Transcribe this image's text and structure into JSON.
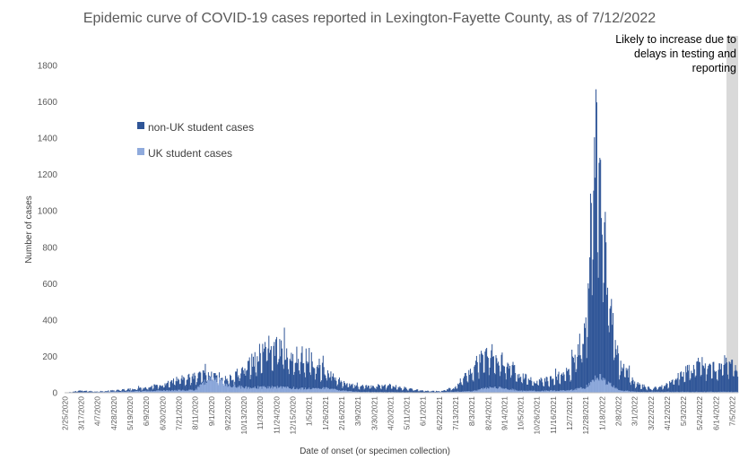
{
  "chart_data": {
    "type": "bar",
    "title": "Epidemic curve of COVID-19 cases reported in Lexington-Fayette County, as of 7/12/2022",
    "ylabel": "Number of cases",
    "xlabel": "Date of onset (or specimen collection)",
    "ylim": [
      0,
      1800
    ],
    "yticks": [
      0,
      200,
      400,
      600,
      800,
      1000,
      1200,
      1400,
      1600,
      1800
    ],
    "grid": false,
    "legend_position": "top-left",
    "series": [
      {
        "name": "non-UK student cases",
        "color": "#2F5597"
      },
      {
        "name": "UK student cases",
        "color": "#8FAADC"
      }
    ],
    "x_range": [
      "2/25/2020",
      "7/12/2022"
    ],
    "x_tick_labels": [
      "2/25/2020",
      "3/17/2020",
      "4/7/2020",
      "4/28/2020",
      "5/19/2020",
      "6/9/2020",
      "6/30/2020",
      "7/21/2020",
      "8/11/2020",
      "9/1/2020",
      "9/22/2020",
      "10/13/2020",
      "11/3/2020",
      "11/24/2020",
      "12/15/2020",
      "1/5/2021",
      "1/26/2021",
      "2/16/2021",
      "3/9/2021",
      "3/30/2021",
      "4/20/2021",
      "5/11/2021",
      "6/1/2021",
      "6/22/2021",
      "7/13/2021",
      "8/3/2021",
      "8/24/2021",
      "9/14/2021",
      "10/5/2021",
      "10/26/2021",
      "11/16/2021",
      "12/7/2021",
      "12/28/2021",
      "1/18/2022",
      "2/8/2022",
      "3/1/2022",
      "3/22/2022",
      "4/12/2022",
      "5/3/2022",
      "5/24/2022",
      "6/14/2022",
      "7/5/2022"
    ],
    "daily_total_keypoints": [
      [
        "2/25/2020",
        0
      ],
      [
        "3/17/2020",
        12
      ],
      [
        "4/7/2020",
        6
      ],
      [
        "4/28/2020",
        14
      ],
      [
        "5/19/2020",
        20
      ],
      [
        "6/9/2020",
        28
      ],
      [
        "6/30/2020",
        48
      ],
      [
        "7/21/2020",
        75
      ],
      [
        "8/11/2020",
        92
      ],
      [
        "9/1/2020",
        110
      ],
      [
        "9/22/2020",
        75
      ],
      [
        "10/13/2020",
        130
      ],
      [
        "11/3/2020",
        230
      ],
      [
        "11/17/2020",
        300
      ],
      [
        "11/24/2020",
        250
      ],
      [
        "12/15/2020",
        210
      ],
      [
        "1/5/2021",
        200
      ],
      [
        "1/26/2021",
        120
      ],
      [
        "2/16/2021",
        60
      ],
      [
        "3/9/2021",
        35
      ],
      [
        "3/30/2021",
        38
      ],
      [
        "4/20/2021",
        40
      ],
      [
        "5/11/2021",
        25
      ],
      [
        "6/1/2021",
        12
      ],
      [
        "6/22/2021",
        8
      ],
      [
        "7/13/2021",
        30
      ],
      [
        "8/3/2021",
        140
      ],
      [
        "8/24/2021",
        230
      ],
      [
        "9/14/2021",
        175
      ],
      [
        "10/5/2021",
        95
      ],
      [
        "10/26/2021",
        65
      ],
      [
        "11/16/2021",
        80
      ],
      [
        "12/7/2021",
        120
      ],
      [
        "12/28/2021",
        350
      ],
      [
        "1/8/2022",
        1450
      ],
      [
        "1/11/2022",
        1530
      ],
      [
        "1/18/2022",
        1100
      ],
      [
        "1/25/2022",
        600
      ],
      [
        "2/8/2022",
        180
      ],
      [
        "3/1/2022",
        55
      ],
      [
        "3/22/2022",
        25
      ],
      [
        "4/12/2022",
        45
      ],
      [
        "5/3/2022",
        110
      ],
      [
        "5/24/2022",
        160
      ],
      [
        "6/14/2022",
        150
      ],
      [
        "7/5/2022",
        185
      ],
      [
        "7/12/2022",
        110
      ]
    ],
    "daily_uk_keypoints": [
      [
        "2/25/2020",
        0
      ],
      [
        "8/11/2020",
        15
      ],
      [
        "8/24/2020",
        60
      ],
      [
        "9/1/2020",
        85
      ],
      [
        "9/22/2020",
        45
      ],
      [
        "10/13/2020",
        28
      ],
      [
        "11/24/2020",
        30
      ],
      [
        "1/5/2021",
        22
      ],
      [
        "1/26/2021",
        28
      ],
      [
        "2/16/2021",
        12
      ],
      [
        "3/9/2021",
        5
      ],
      [
        "6/1/2021",
        2
      ],
      [
        "8/3/2021",
        8
      ],
      [
        "8/24/2021",
        28
      ],
      [
        "9/14/2021",
        25
      ],
      [
        "10/5/2021",
        10
      ],
      [
        "12/7/2021",
        12
      ],
      [
        "12/28/2021",
        30
      ],
      [
        "1/11/2022",
        95
      ],
      [
        "1/25/2022",
        55
      ],
      [
        "2/8/2022",
        15
      ],
      [
        "3/1/2022",
        5
      ],
      [
        "7/12/2022",
        5
      ]
    ],
    "annotations": [
      {
        "text_lines": [
          "Likely to increase due to",
          "delays in testing and",
          "reporting"
        ],
        "shaded_range": [
          "6/28/2022",
          "7/12/2022"
        ],
        "shade_color": "#D9D9D9"
      }
    ]
  }
}
